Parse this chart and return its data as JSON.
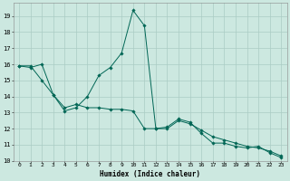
{
  "title": "",
  "xlabel": "Humidex (Indice chaleur)",
  "background_color": "#cce8e0",
  "grid_color": "#aaccc4",
  "line_color": "#006655",
  "xlim": [
    -0.5,
    23.5
  ],
  "ylim": [
    10,
    19.8
  ],
  "yticks": [
    10,
    11,
    12,
    13,
    14,
    15,
    16,
    17,
    18,
    19
  ],
  "xticks": [
    0,
    1,
    2,
    3,
    4,
    5,
    6,
    7,
    8,
    9,
    10,
    11,
    12,
    13,
    14,
    15,
    16,
    17,
    18,
    19,
    20,
    21,
    22,
    23
  ],
  "line1_x": [
    0,
    1,
    2,
    3,
    4,
    5,
    6,
    7,
    8,
    9,
    10,
    11,
    12,
    13,
    14,
    15,
    16,
    17,
    18,
    19,
    20,
    21,
    22,
    23
  ],
  "line1_y": [
    15.9,
    15.8,
    16.0,
    14.1,
    13.1,
    13.3,
    14.0,
    15.3,
    15.8,
    16.7,
    19.35,
    18.4,
    12.0,
    12.1,
    12.6,
    12.4,
    11.7,
    11.1,
    11.1,
    10.9,
    10.8,
    10.9,
    10.5,
    10.2
  ],
  "line2_x": [
    0,
    1,
    2,
    3,
    4,
    5,
    6,
    7,
    8,
    9,
    10,
    11,
    12,
    13,
    14,
    15,
    16,
    17,
    18,
    19,
    20,
    21,
    22,
    23
  ],
  "line2_y": [
    15.9,
    15.9,
    15.0,
    14.1,
    13.3,
    13.5,
    13.3,
    13.3,
    13.2,
    13.2,
    13.1,
    12.0,
    12.0,
    12.0,
    12.5,
    12.3,
    11.9,
    11.5,
    11.3,
    11.1,
    10.9,
    10.8,
    10.6,
    10.3
  ],
  "xlabel_fontsize": 5.5,
  "tick_fontsize": 4.5,
  "marker_size": 1.8,
  "line_width": 0.7
}
